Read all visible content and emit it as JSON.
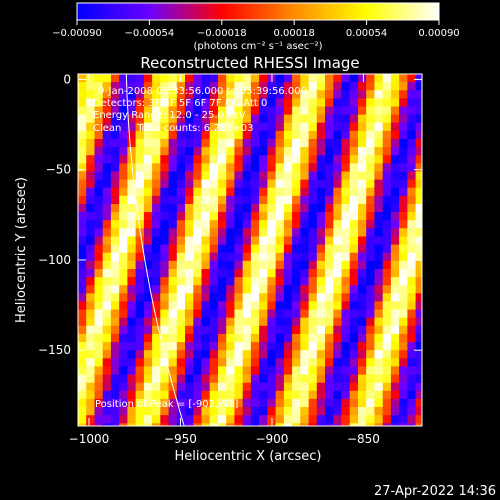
{
  "chart_data": {
    "type": "heatmap",
    "title": "Reconstructed RHESSI Image",
    "xlabel": "Heliocentric X (arcsec)",
    "ylabel": "Heliocentric Y (arcsec)",
    "xlim": [
      -1006,
      -818
    ],
    "ylim": [
      -192,
      3
    ],
    "xticks": [
      -1000,
      -950,
      -900,
      -850
    ],
    "xtick_labels": [
      "−1000",
      "−950",
      "−900",
      "−850"
    ],
    "yticks": [
      0,
      -50,
      -100,
      -150
    ],
    "ytick_labels": [
      "0",
      "−50",
      "−100",
      "−150"
    ],
    "colorbar": {
      "min": -0.0009,
      "max": 0.0009,
      "ticks": [
        -0.0009,
        -0.00054,
        -0.00018,
        0.00018,
        0.00054,
        0.0009
      ],
      "tick_labels": [
        "−0.00090",
        "−0.00054",
        "−0.00018",
        "0.00018",
        "0.00054",
        "0.00090"
      ],
      "unit_label": "(photons cm⁻² s⁻¹ asec⁻²)",
      "colormap": [
        "#0000ff",
        "#6a00ff",
        "#ff0000",
        "#ff8a00",
        "#ffff00",
        "#ffffff"
      ]
    },
    "annotations": [
      "9-Jan-2008 05:33:56.000 to 05:39:56.000",
      "Detectors: 3F 4F 5F 6F 7F 8F, Att 0",
      "Energy Range: 12.0 - 25.0 keV",
      "Clean     Total counts: 6.21E+03"
    ],
    "peak_label": "Position of Peak = [-902,-91]",
    "peak": [
      -902,
      -91
    ],
    "limb_arc": true,
    "pattern": {
      "period_arcsec": 40,
      "fringe_tilt": 0.28,
      "bright_center": [
        -902,
        -91
      ]
    }
  },
  "footer": {
    "timestamp": "27-Apr-2022 14:36"
  }
}
